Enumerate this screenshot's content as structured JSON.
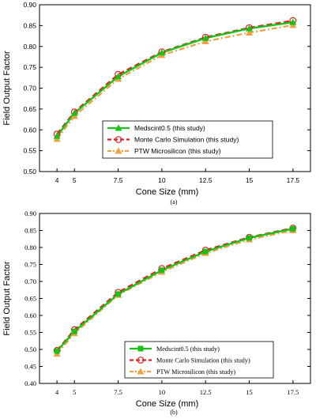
{
  "panels": [
    {
      "caption": "(a)",
      "chart_data": {
        "type": "line",
        "xlabel": "Cone Size (mm)",
        "ylabel": "Field Output Factor",
        "x": [
          4,
          5,
          7.5,
          10,
          12.5,
          15,
          17.5
        ],
        "xticks": [
          "4",
          "5",
          "7.5",
          "10",
          "12.5",
          "15",
          "17.5"
        ],
        "xlim": [
          3,
          18.5
        ],
        "ylim": [
          0.5,
          0.9
        ],
        "yticks": [
          "0.50",
          "0.55",
          "0.60",
          "0.65",
          "0.70",
          "0.75",
          "0.80",
          "0.85",
          "0.90"
        ],
        "legend_position": "bottom-right",
        "series": [
          {
            "name": "Medscint0.5 (this study)",
            "values": [
              0.585,
              0.64,
              0.728,
              0.785,
              0.82,
              0.843,
              0.858
            ],
            "color": "#19c219",
            "marker": "triangle",
            "line": "solid"
          },
          {
            "name": "Monte Carlo Simulation (this study)",
            "values": [
              0.59,
              0.643,
              0.733,
              0.787,
              0.822,
              0.845,
              0.862
            ],
            "color": "#e02020",
            "marker": "circle-open",
            "line": "dashed"
          },
          {
            "name": "PTW Microsilicon (this study)",
            "values": [
              0.578,
              0.633,
              0.722,
              0.779,
              0.812,
              0.833,
              0.851
            ],
            "color": "#f0a040",
            "marker": "triangle",
            "line": "dashdot"
          }
        ]
      }
    },
    {
      "caption": "(b)",
      "chart_data": {
        "type": "line",
        "xlabel": "Cone Size (mm)",
        "ylabel": "Field Output Factor",
        "x": [
          4,
          5,
          7.5,
          10,
          12.5,
          15,
          17.5
        ],
        "xticks": [
          "4",
          "5",
          "7.5",
          "10",
          "12.5",
          "15",
          "17.5"
        ],
        "xlim": [
          3,
          18.5
        ],
        "ylim": [
          0.4,
          0.9
        ],
        "yticks": [
          "0.40",
          "0.45",
          "0.50",
          "0.55",
          "0.60",
          "0.65",
          "0.70",
          "0.75",
          "0.80",
          "0.85",
          "0.90"
        ],
        "legend_position": "bottom-right",
        "series": [
          {
            "name": "Medscint0.5 (this study)",
            "values": [
              0.495,
              0.553,
              0.663,
              0.733,
              0.788,
              0.828,
              0.855
            ],
            "color": "#19c219",
            "marker": "square",
            "line": "solid"
          },
          {
            "name": "Monte Carlo Simulation (this study)",
            "values": [
              0.497,
              0.558,
              0.668,
              0.738,
              0.792,
              0.83,
              0.857
            ],
            "color": "#e02020",
            "marker": "circle-open",
            "line": "dashed"
          },
          {
            "name": "PTW Microsilicon (this study)",
            "values": [
              0.487,
              0.547,
              0.66,
              0.728,
              0.783,
              0.823,
              0.85
            ],
            "color": "#f0a040",
            "marker": "triangle",
            "line": "dashdot"
          }
        ]
      }
    }
  ]
}
